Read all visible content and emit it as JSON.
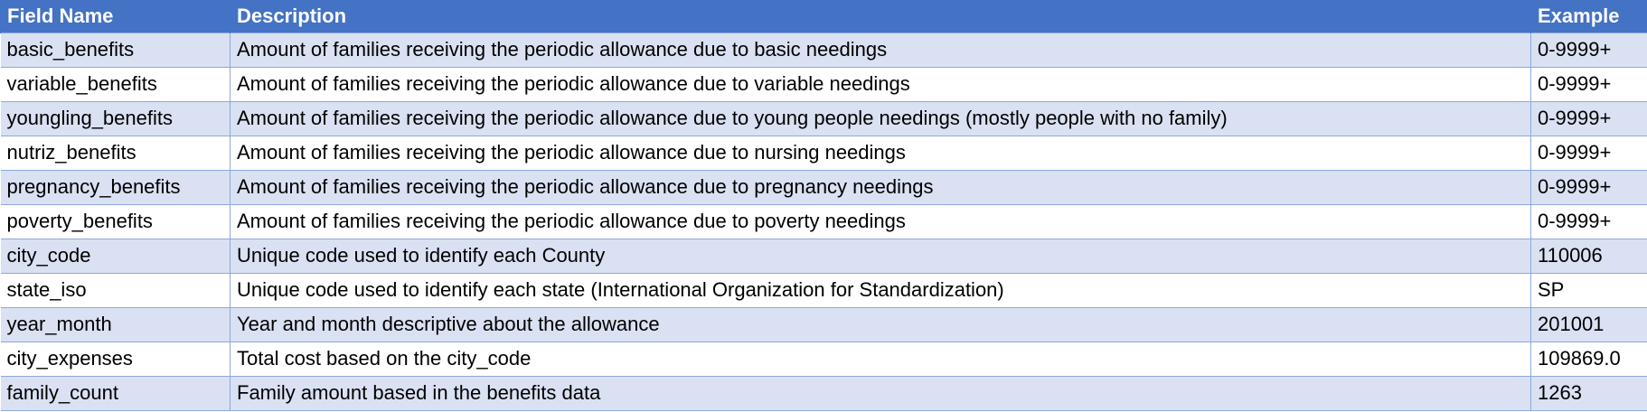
{
  "colors": {
    "header_bg": "#4472c4",
    "header_text": "#ffffff",
    "band_row_bg": "#d9e1f2",
    "plain_row_bg": "#ffffff",
    "border": "#8ea9db"
  },
  "table": {
    "headers": {
      "field_name": "Field Name",
      "description": "Description",
      "example": "Example"
    },
    "rows": [
      {
        "field": "basic_benefits",
        "description": "Amount of families receiving the periodic allowance due to basic needings",
        "example": "0-9999+"
      },
      {
        "field": "variable_benefits",
        "description": "Amount of families receiving the periodic allowance due to variable needings",
        "example": "0-9999+"
      },
      {
        "field": "youngling_benefits",
        "description": "Amount of families receiving the periodic allowance due to young people needings (mostly people with no family)",
        "example": "0-9999+"
      },
      {
        "field": "nutriz_benefits",
        "description": "Amount of families receiving the periodic allowance due to nursing needings",
        "example": "0-9999+"
      },
      {
        "field": "pregnancy_benefits",
        "description": "Amount of families receiving the periodic allowance due to pregnancy needings",
        "example": "0-9999+"
      },
      {
        "field": "poverty_benefits",
        "description": "Amount of families receiving the periodic allowance due to poverty needings",
        "example": "0-9999+"
      },
      {
        "field": "city_code",
        "description": "Unique code used to identify each County",
        "example": "110006"
      },
      {
        "field": "state_iso",
        "description": "Unique code used to identify each state (International Organization for Standardization)",
        "example": "SP"
      },
      {
        "field": "year_month",
        "description": "Year and month descriptive about the allowance",
        "example": "201001"
      },
      {
        "field": "city_expenses",
        "description": "Total cost based on the city_code",
        "example": "109869.0"
      },
      {
        "field": "family_count",
        "description": "Family amount based in the benefits data",
        "example": "1263"
      }
    ]
  }
}
